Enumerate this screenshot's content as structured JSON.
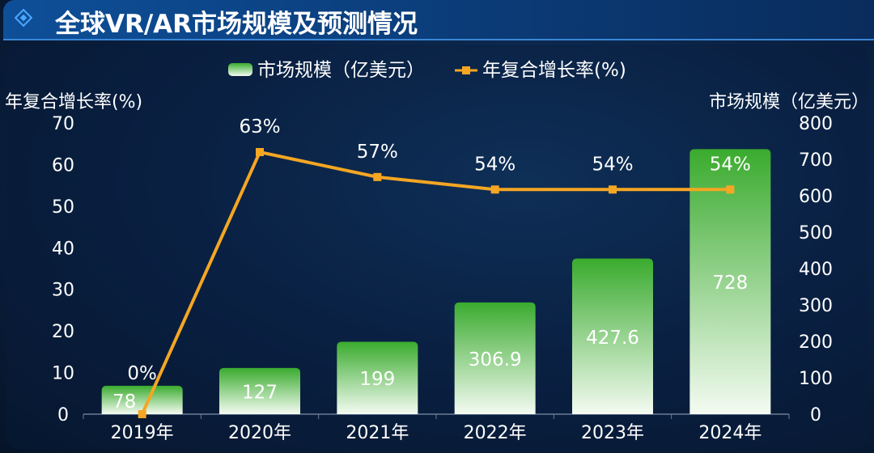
{
  "title": "全球VR/AR市场规模及预测情况",
  "chart_data": {
    "type": "bar+line",
    "title": "全球VR/AR市场规模及预测情况",
    "categories": [
      "2019年",
      "2020年",
      "2021年",
      "2022年",
      "2023年",
      "2024年"
    ],
    "series": [
      {
        "name": "市场规模（亿美元）",
        "type": "bar",
        "axis": "right",
        "values": [
          78,
          127,
          199,
          306.9,
          427.6,
          728
        ],
        "labels": [
          "78",
          "127",
          "199",
          "306.9",
          "427.6",
          "728"
        ]
      },
      {
        "name": "年复合增长率(%)",
        "type": "line",
        "axis": "left",
        "values": [
          0,
          63,
          57,
          54,
          54,
          54
        ],
        "labels": [
          "0%",
          "63%",
          "57%",
          "54%",
          "54%",
          "54%"
        ]
      }
    ],
    "ylabel_left": "年复合增长率(%)",
    "ylabel_right": "市场规模（亿美元）",
    "ylim_left": [
      0,
      70
    ],
    "ylim_right": [
      0,
      800
    ],
    "yticks_left": [
      "0",
      "10",
      "20",
      "30",
      "40",
      "50",
      "60",
      "70"
    ],
    "yticks_right": [
      "0",
      "100",
      "200",
      "300",
      "400",
      "500",
      "600",
      "700",
      "800"
    ],
    "legend": "top-center",
    "grid": false,
    "colors": {
      "bar_top": "#3aab2e",
      "bar_bottom": "#f4fbf2",
      "line": "#f5a623"
    }
  }
}
